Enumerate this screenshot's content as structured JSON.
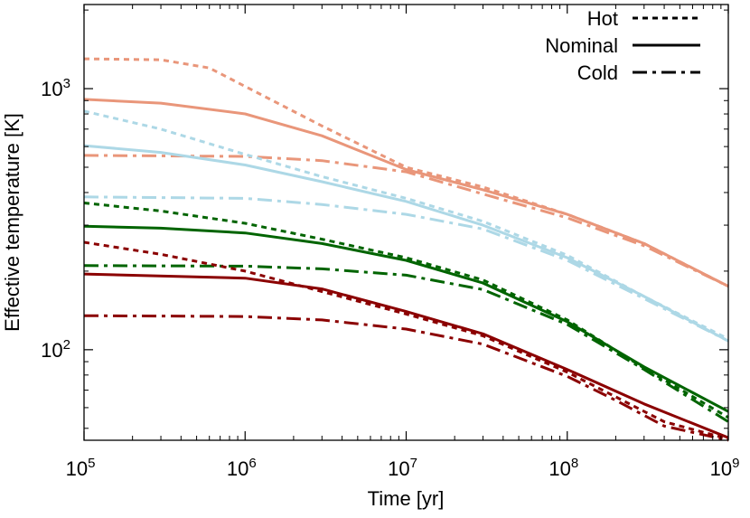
{
  "chart_data": {
    "type": "line",
    "title": "",
    "xlabel": "Time [yr]",
    "ylabel": "Effective temperature [K]",
    "x_scale": "log",
    "y_scale": "log",
    "xlim": [
      100000,
      1000000000
    ],
    "ylim": [
      45,
      2100
    ],
    "x_ticks": [
      {
        "value": 100000,
        "base": "10",
        "exp": "5"
      },
      {
        "value": 1000000,
        "base": "10",
        "exp": "6"
      },
      {
        "value": 10000000,
        "base": "10",
        "exp": "7"
      },
      {
        "value": 100000000,
        "base": "10",
        "exp": "8"
      },
      {
        "value": 1000000000,
        "base": "10",
        "exp": "9"
      }
    ],
    "y_ticks": [
      {
        "value": 100,
        "base": "10",
        "exp": "2"
      },
      {
        "value": 1000,
        "base": "10",
        "exp": "3"
      }
    ],
    "grid": false,
    "legend": {
      "position": "top-right",
      "entries": [
        {
          "label": "Hot",
          "style": "dotted"
        },
        {
          "label": "Nominal",
          "style": "solid"
        },
        {
          "label": "Cold",
          "style": "dashdot"
        }
      ]
    },
    "series": [
      {
        "group": "salmon",
        "color": "#e9967a",
        "style": "dotted",
        "points": [
          [
            100000.0,
            1300
          ],
          [
            300000.0,
            1290
          ],
          [
            600000.0,
            1200
          ],
          [
            1000000.0,
            1020
          ],
          [
            3000000.0,
            720
          ],
          [
            10000000.0,
            500
          ],
          [
            30000000.0,
            420
          ],
          [
            100000000.0,
            330
          ],
          [
            300000000.0,
            255
          ],
          [
            1000000000.0,
            175
          ]
        ]
      },
      {
        "group": "salmon",
        "color": "#e9967a",
        "style": "solid",
        "points": [
          [
            100000.0,
            910
          ],
          [
            300000.0,
            880
          ],
          [
            1000000.0,
            800
          ],
          [
            3000000.0,
            660
          ],
          [
            10000000.0,
            490
          ],
          [
            30000000.0,
            410
          ],
          [
            100000000.0,
            330
          ],
          [
            300000000.0,
            255
          ],
          [
            1000000000.0,
            175
          ]
        ]
      },
      {
        "group": "salmon",
        "color": "#e9967a",
        "style": "dashdot",
        "points": [
          [
            100000.0,
            555
          ],
          [
            1000000.0,
            550
          ],
          [
            3000000.0,
            530
          ],
          [
            10000000.0,
            480
          ],
          [
            30000000.0,
            395
          ],
          [
            100000000.0,
            320
          ],
          [
            300000000.0,
            250
          ],
          [
            1000000000.0,
            175
          ]
        ]
      },
      {
        "group": "lightblue",
        "color": "#add8e6",
        "style": "dotted",
        "points": [
          [
            100000.0,
            820
          ],
          [
            300000.0,
            700
          ],
          [
            1000000.0,
            560
          ],
          [
            3000000.0,
            460
          ],
          [
            10000000.0,
            380
          ],
          [
            30000000.0,
            310
          ],
          [
            100000000.0,
            230
          ],
          [
            300000000.0,
            160
          ],
          [
            1000000000.0,
            110
          ]
        ]
      },
      {
        "group": "lightblue",
        "color": "#add8e6",
        "style": "solid",
        "points": [
          [
            100000.0,
            605
          ],
          [
            300000.0,
            570
          ],
          [
            1000000.0,
            510
          ],
          [
            3000000.0,
            440
          ],
          [
            10000000.0,
            370
          ],
          [
            30000000.0,
            300
          ],
          [
            100000000.0,
            225
          ],
          [
            300000000.0,
            160
          ],
          [
            1000000000.0,
            108
          ]
        ]
      },
      {
        "group": "lightblue",
        "color": "#add8e6",
        "style": "dashdot",
        "points": [
          [
            100000.0,
            385
          ],
          [
            1000000.0,
            380
          ],
          [
            3000000.0,
            360
          ],
          [
            10000000.0,
            330
          ],
          [
            30000000.0,
            290
          ],
          [
            100000000.0,
            220
          ],
          [
            300000000.0,
            157
          ],
          [
            1000000000.0,
            108
          ]
        ]
      },
      {
        "group": "green",
        "color": "#006400",
        "style": "dotted",
        "points": [
          [
            100000.0,
            365
          ],
          [
            300000.0,
            340
          ],
          [
            1000000.0,
            305
          ],
          [
            3000000.0,
            265
          ],
          [
            10000000.0,
            225
          ],
          [
            30000000.0,
            185
          ],
          [
            100000000.0,
            130
          ],
          [
            300000000.0,
            85
          ],
          [
            1000000000.0,
            55
          ]
        ]
      },
      {
        "group": "green",
        "color": "#006400",
        "style": "solid",
        "points": [
          [
            100000.0,
            297
          ],
          [
            300000.0,
            292
          ],
          [
            1000000.0,
            280
          ],
          [
            3000000.0,
            255
          ],
          [
            10000000.0,
            220
          ],
          [
            30000000.0,
            180
          ],
          [
            100000000.0,
            128
          ],
          [
            300000000.0,
            86
          ],
          [
            1000000000.0,
            58
          ]
        ]
      },
      {
        "group": "green",
        "color": "#006400",
        "style": "dashdot",
        "points": [
          [
            100000.0,
            210
          ],
          [
            1000000.0,
            209
          ],
          [
            3000000.0,
            204
          ],
          [
            10000000.0,
            193
          ],
          [
            30000000.0,
            170
          ],
          [
            100000000.0,
            125
          ],
          [
            300000000.0,
            84
          ],
          [
            1000000000.0,
            53
          ]
        ]
      },
      {
        "group": "darkred",
        "color": "#8b0000",
        "style": "dotted",
        "points": [
          [
            100000.0,
            258
          ],
          [
            300000.0,
            232
          ],
          [
            1000000.0,
            200
          ],
          [
            3000000.0,
            167
          ],
          [
            10000000.0,
            137
          ],
          [
            30000000.0,
            113
          ],
          [
            100000000.0,
            82
          ],
          [
            200000000.0,
            66
          ],
          [
            400000000.0,
            53
          ],
          [
            1000000000.0,
            45.5
          ]
        ]
      },
      {
        "group": "darkred",
        "color": "#8b0000",
        "style": "solid",
        "points": [
          [
            100000.0,
            195
          ],
          [
            1000000.0,
            188
          ],
          [
            3000000.0,
            171
          ],
          [
            10000000.0,
            140
          ],
          [
            30000000.0,
            115
          ],
          [
            100000000.0,
            84
          ],
          [
            300000000.0,
            62
          ],
          [
            1000000000.0,
            46
          ]
        ]
      },
      {
        "group": "darkred",
        "color": "#8b0000",
        "style": "dashdot",
        "points": [
          [
            100000.0,
            135
          ],
          [
            1000000.0,
            134
          ],
          [
            3000000.0,
            130
          ],
          [
            10000000.0,
            120
          ],
          [
            30000000.0,
            105
          ],
          [
            100000000.0,
            79
          ],
          [
            200000000.0,
            64
          ],
          [
            400000000.0,
            51
          ],
          [
            1000000000.0,
            45
          ]
        ]
      }
    ]
  }
}
